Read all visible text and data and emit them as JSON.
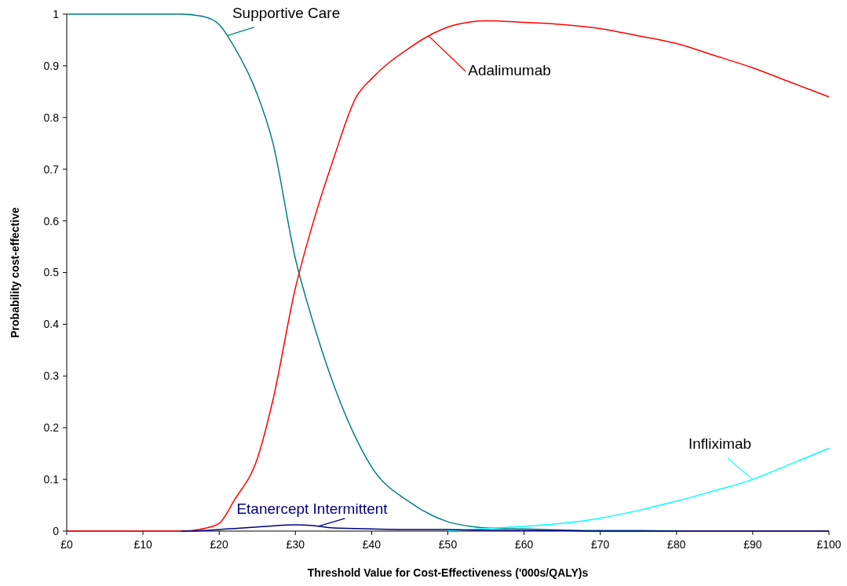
{
  "chart_data": {
    "type": "line",
    "xlabel": "Threshold Value for Cost-Effectiveness ('000s/QALY)s",
    "ylabel": "Probability cost-effective",
    "xlim": [
      0,
      100
    ],
    "ylim": [
      0,
      1
    ],
    "xticks": [
      {
        "value": 0,
        "label": "£0"
      },
      {
        "value": 10,
        "label": "£10"
      },
      {
        "value": 20,
        "label": "£20"
      },
      {
        "value": 30,
        "label": "£30"
      },
      {
        "value": 40,
        "label": "£40"
      },
      {
        "value": 50,
        "label": "£50"
      },
      {
        "value": 60,
        "label": "£60"
      },
      {
        "value": 70,
        "label": "£70"
      },
      {
        "value": 80,
        "label": "£80"
      },
      {
        "value": 90,
        "label": "£90"
      },
      {
        "value": 100,
        "label": "£100"
      }
    ],
    "yticks": [
      0,
      0.1,
      0.2,
      0.3,
      0.4,
      0.5,
      0.6,
      0.7,
      0.8,
      0.9,
      1
    ],
    "x": [
      0,
      10,
      15,
      18,
      20,
      22,
      25,
      27,
      30,
      32,
      35,
      38,
      40,
      45,
      48,
      50,
      53,
      55,
      60,
      65,
      70,
      75,
      80,
      85,
      90,
      95,
      100
    ],
    "series": [
      {
        "name": "Supportive Care",
        "color": "#008080",
        "values": [
          1,
          1,
          1,
          0.995,
          0.98,
          0.936,
          0.845,
          0.754,
          0.527,
          0.42,
          0.284,
          0.178,
          0.124,
          0.056,
          0.03,
          0.018,
          0.009,
          0.006,
          0.004,
          0.002,
          0.001,
          0.001,
          0,
          null,
          null,
          null,
          null
        ]
      },
      {
        "name": "Adalimumab",
        "color": "#ff0000",
        "values": [
          0,
          0,
          0,
          0.005,
          0.015,
          0.06,
          0.14,
          0.25,
          0.47,
          0.58,
          0.72,
          0.84,
          0.875,
          0.935,
          0.962,
          0.975,
          0.985,
          0.987,
          0.984,
          0.98,
          0.972,
          0.958,
          0.943,
          0.92,
          0.896,
          0.868,
          0.84
        ]
      },
      {
        "name": "Infliximab",
        "color": "#00ffff",
        "values": [
          null,
          null,
          null,
          null,
          null,
          null,
          null,
          null,
          null,
          null,
          null,
          null,
          null,
          null,
          null,
          0.001,
          0.003,
          0.005,
          0.009,
          0.015,
          0.025,
          0.04,
          0.058,
          0.078,
          0.1,
          0.13,
          0.16
        ]
      },
      {
        "name": "Etanercept Intermittent",
        "color": "#000080",
        "values": [
          null,
          null,
          0,
          0.001,
          0.003,
          0.005,
          0.008,
          0.01,
          0.012,
          0.011,
          0.006,
          0.005,
          0.004,
          0.003,
          0.003,
          0.003,
          0.002,
          0.002,
          0.001,
          0.001,
          0,
          0,
          0,
          0,
          0,
          0,
          0
        ]
      }
    ],
    "grid": false,
    "legend": false,
    "marker": "none",
    "line_style": "solid"
  }
}
